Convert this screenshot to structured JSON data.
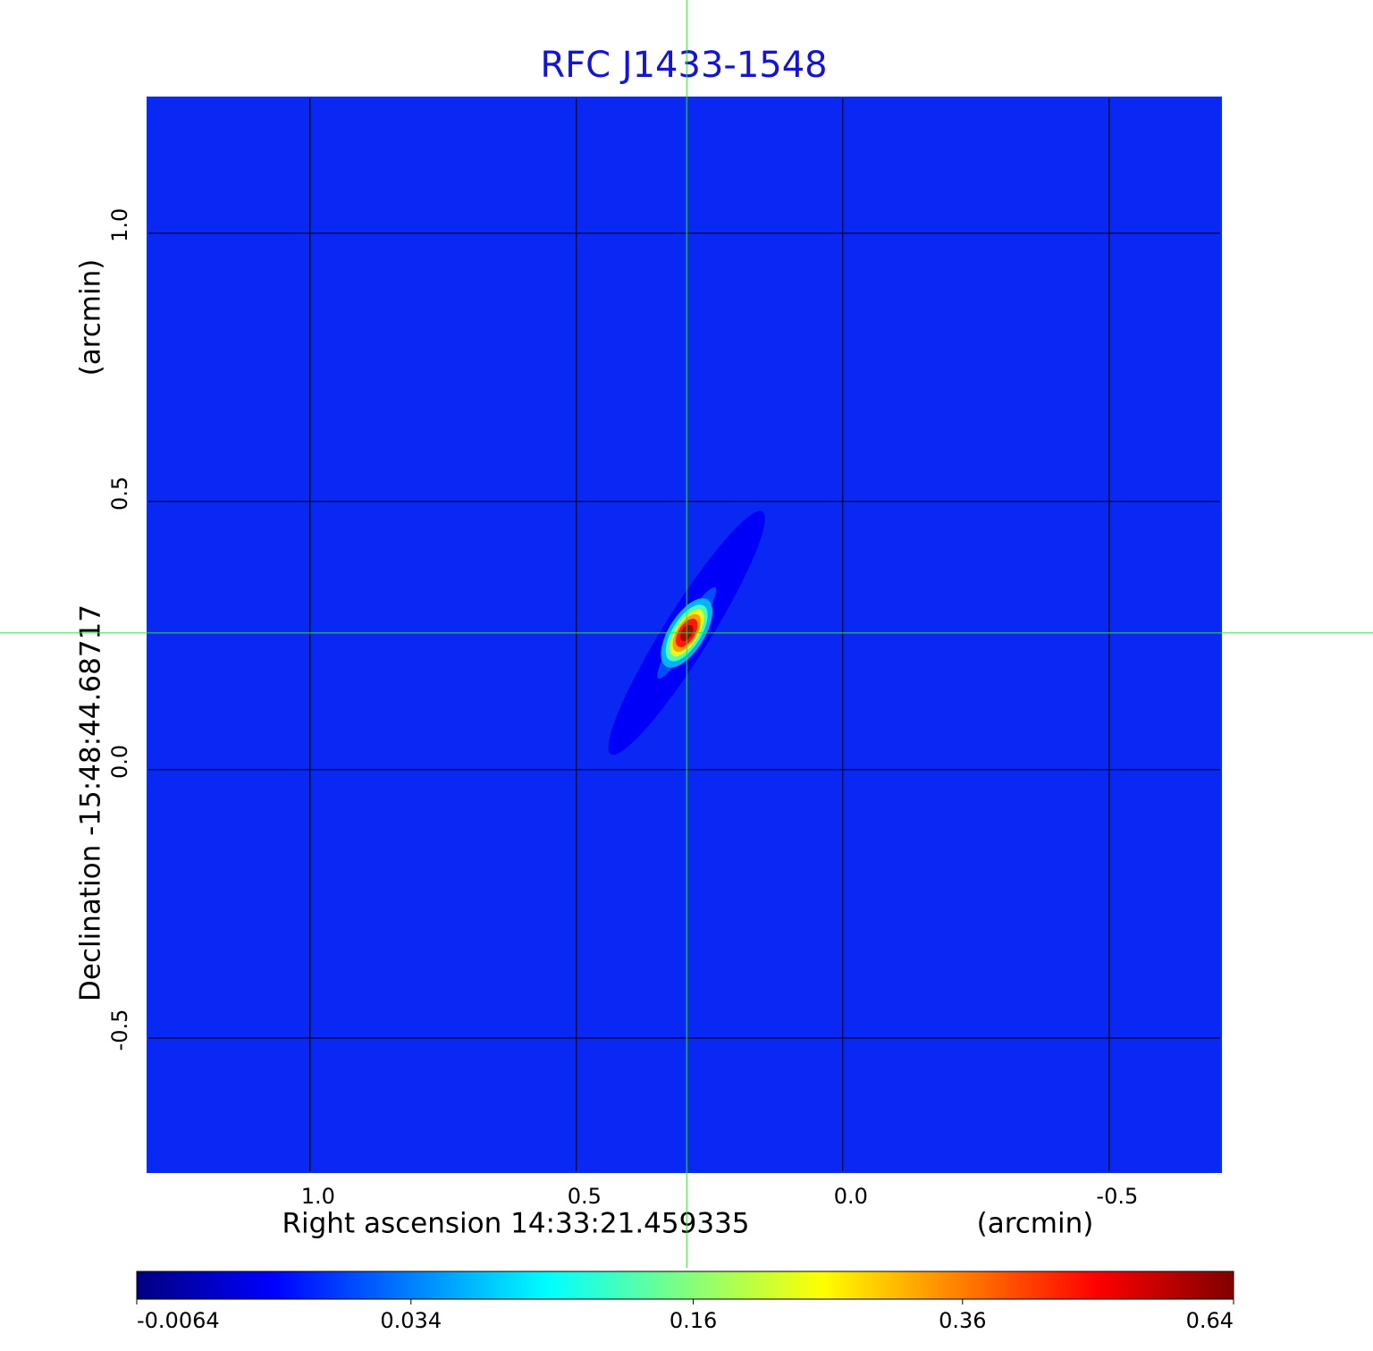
{
  "chart_data": {
    "type": "image",
    "title": "RFC J1433-1548",
    "xlabel": "Right ascension  14:33:21.459335",
    "xunit": "(arcmin)",
    "ylabel": "Declination  -15:48:44.68717",
    "yunit": "(arcmin)",
    "xlim": [
      1.305,
      -0.71
    ],
    "ylim": [
      -0.75,
      1.253
    ],
    "xticks": [
      {
        "value": 1,
        "label": "1.0"
      },
      {
        "value": 0.5,
        "label": "0.5"
      },
      {
        "value": 0,
        "label": "0.0"
      },
      {
        "value": -0.5,
        "label": "-0.5"
      }
    ],
    "yticks": [
      {
        "value": 1,
        "label": "1.0"
      },
      {
        "value": 0.5,
        "label": "0.5"
      },
      {
        "value": 0,
        "label": "0.0"
      },
      {
        "value": -0.5,
        "label": "-0.5"
      }
    ],
    "grid": true,
    "crosshair": [
      0.293,
      0.255
    ],
    "colormap": "jet",
    "color_scale": "sqrt",
    "clim": [
      -0.0064,
      0.64
    ],
    "cticks": [
      -0.0064,
      0.034,
      0.16,
      0.36,
      0.64
    ]
  }
}
